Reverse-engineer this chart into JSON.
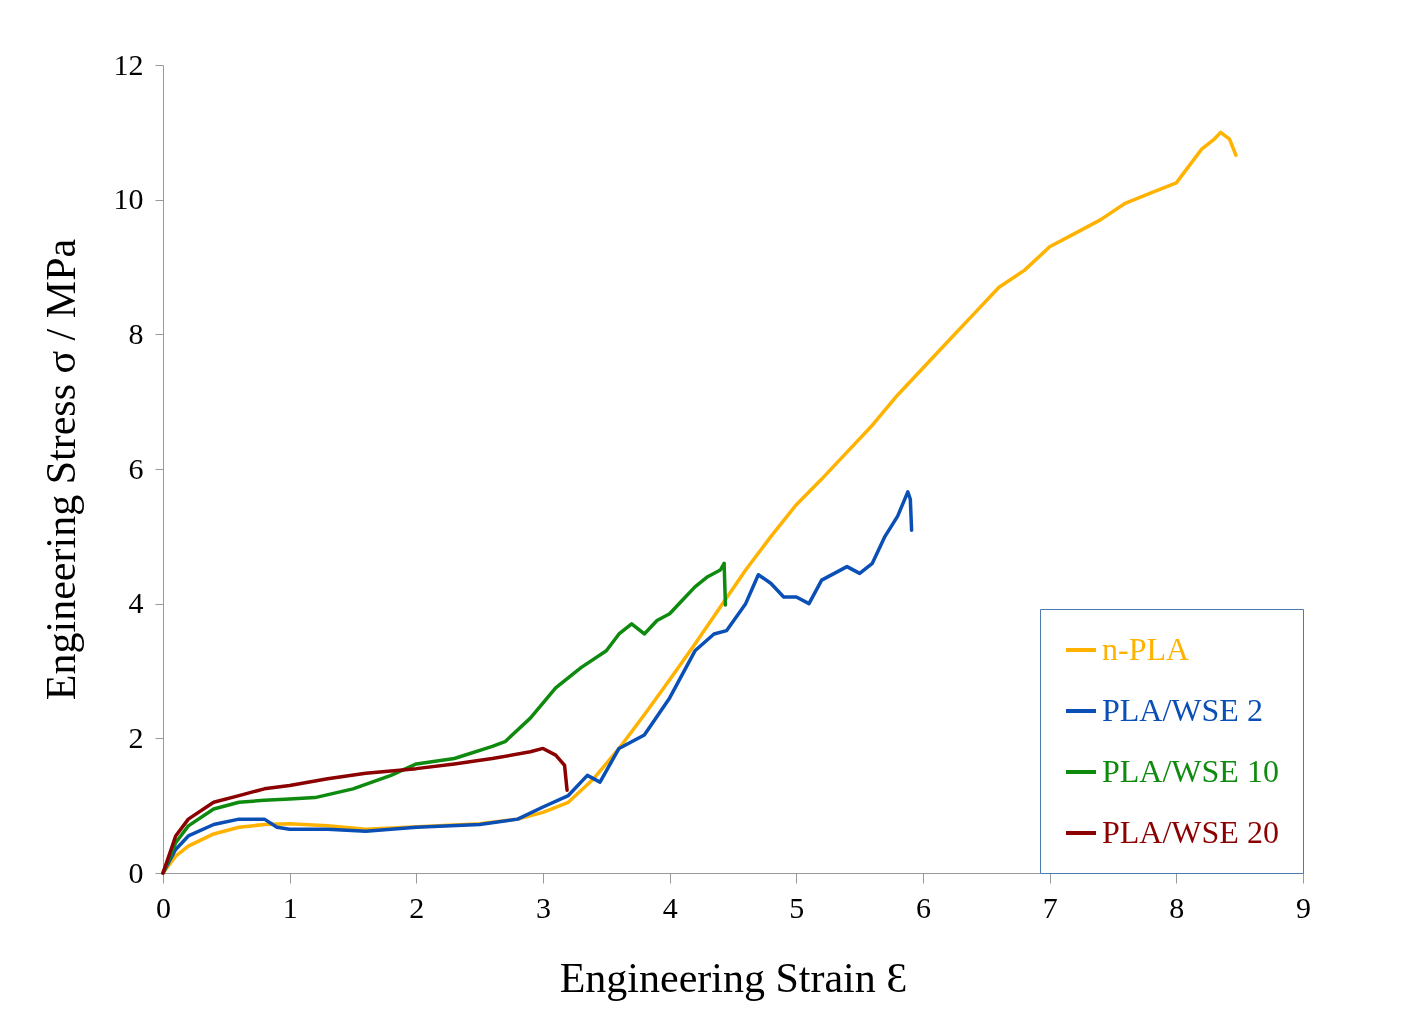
{
  "chart_data": {
    "type": "line",
    "xlabel": "Engineering Strain Ɛ",
    "ylabel": "Engineering Stress σ / MPa",
    "xlim": [
      0,
      9
    ],
    "ylim": [
      0,
      12
    ],
    "xticks": [
      0,
      1,
      2,
      3,
      4,
      5,
      6,
      7,
      8,
      9
    ],
    "yticks": [
      0,
      2,
      4,
      6,
      8,
      10,
      12
    ],
    "grid": false,
    "legend": "bottom right",
    "marker": "none",
    "line_style": "solid",
    "series": [
      {
        "name": "n-PLA",
        "color": "#ffb300",
        "x": [
          0,
          0.1,
          0.2,
          0.4,
          0.6,
          0.8,
          1.0,
          1.3,
          1.6,
          2.5,
          2.8,
          3.0,
          3.2,
          3.4,
          3.6,
          3.8,
          4.0,
          4.2,
          4.4,
          4.6,
          4.8,
          5.0,
          5.2,
          5.4,
          5.6,
          5.8,
          6.0,
          6.2,
          6.4,
          6.6,
          6.8,
          7.0,
          7.2,
          7.4,
          7.6,
          7.8,
          8.0,
          8.2,
          8.3,
          8.35,
          8.42,
          8.47
        ],
        "values": [
          0,
          0.25,
          0.4,
          0.58,
          0.68,
          0.72,
          0.73,
          0.7,
          0.65,
          0.73,
          0.8,
          0.9,
          1.05,
          1.4,
          1.85,
          2.35,
          2.87,
          3.4,
          3.95,
          4.5,
          5.0,
          5.47,
          5.85,
          6.25,
          6.65,
          7.1,
          7.5,
          7.9,
          8.3,
          8.7,
          8.95,
          9.3,
          9.5,
          9.7,
          9.95,
          10.1,
          10.25,
          10.75,
          10.9,
          11.0,
          10.9,
          10.66
        ]
      },
      {
        "name": "PLA/WSE 2",
        "color": "#0a4fb5",
        "x": [
          0,
          0.1,
          0.2,
          0.4,
          0.6,
          0.8,
          0.9,
          1.0,
          1.3,
          1.6,
          2.0,
          2.5,
          2.8,
          3.0,
          3.2,
          3.35,
          3.45,
          3.6,
          3.8,
          4.0,
          4.2,
          4.35,
          4.45,
          4.6,
          4.7,
          4.8,
          4.9,
          5.0,
          5.1,
          5.2,
          5.4,
          5.5,
          5.6,
          5.7,
          5.8,
          5.88,
          5.9,
          5.91
        ],
        "values": [
          0,
          0.35,
          0.55,
          0.72,
          0.8,
          0.8,
          0.68,
          0.65,
          0.65,
          0.62,
          0.68,
          0.72,
          0.8,
          0.98,
          1.15,
          1.45,
          1.35,
          1.85,
          2.05,
          2.6,
          3.3,
          3.55,
          3.6,
          4.0,
          4.43,
          4.3,
          4.1,
          4.1,
          4.0,
          4.35,
          4.55,
          4.45,
          4.6,
          5.0,
          5.3,
          5.66,
          5.55,
          5.09
        ]
      },
      {
        "name": "PLA/WSE 10",
        "color": "#0e8a0e",
        "x": [
          0,
          0.1,
          0.2,
          0.4,
          0.6,
          0.8,
          1.0,
          1.2,
          1.5,
          1.8,
          2.0,
          2.3,
          2.6,
          2.7,
          2.9,
          3.1,
          3.3,
          3.5,
          3.6,
          3.7,
          3.8,
          3.9,
          4.0,
          4.1,
          4.2,
          4.3,
          4.4,
          4.43,
          4.44
        ],
        "values": [
          0,
          0.45,
          0.7,
          0.95,
          1.05,
          1.08,
          1.1,
          1.12,
          1.25,
          1.45,
          1.62,
          1.7,
          1.88,
          1.95,
          2.3,
          2.75,
          3.05,
          3.3,
          3.55,
          3.7,
          3.55,
          3.75,
          3.85,
          4.05,
          4.25,
          4.4,
          4.5,
          4.6,
          3.98
        ]
      },
      {
        "name": "PLA/WSE 20",
        "color": "#8b0000",
        "x": [
          0,
          0.1,
          0.2,
          0.4,
          0.6,
          0.8,
          1.0,
          1.3,
          1.6,
          2.0,
          2.3,
          2.6,
          2.9,
          3.0,
          3.1,
          3.17,
          3.19
        ],
        "values": [
          0,
          0.55,
          0.8,
          1.05,
          1.15,
          1.25,
          1.3,
          1.4,
          1.48,
          1.55,
          1.62,
          1.7,
          1.8,
          1.85,
          1.75,
          1.6,
          1.23
        ]
      }
    ]
  }
}
